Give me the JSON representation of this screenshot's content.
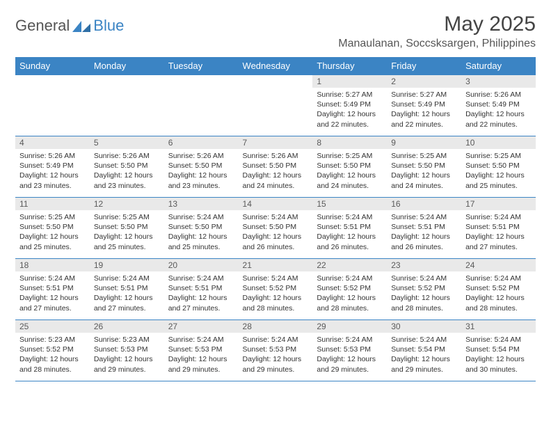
{
  "logo": {
    "text_a": "General",
    "text_b": "Blue",
    "shape_color": "#3b84c4"
  },
  "header": {
    "month_title": "May 2025",
    "location": "Manaulanan, Soccsksargen, Philippines"
  },
  "colors": {
    "header_bg": "#3b84c4",
    "header_text": "#ffffff",
    "daynum_bg": "#e9e9e9",
    "cell_border": "#3b84c4",
    "body_text": "#333333"
  },
  "typography": {
    "month_title_pt": 30,
    "location_pt": 16,
    "dow_pt": 13,
    "daynum_pt": 12,
    "info_pt": 10.5
  },
  "days_of_week": [
    "Sunday",
    "Monday",
    "Tuesday",
    "Wednesday",
    "Thursday",
    "Friday",
    "Saturday"
  ],
  "weeks": [
    [
      {
        "blank": true
      },
      {
        "blank": true
      },
      {
        "blank": true
      },
      {
        "blank": true
      },
      {
        "n": "1",
        "sunrise": "5:27 AM",
        "sunset": "5:49 PM",
        "daylight": "12 hours and 22 minutes."
      },
      {
        "n": "2",
        "sunrise": "5:27 AM",
        "sunset": "5:49 PM",
        "daylight": "12 hours and 22 minutes."
      },
      {
        "n": "3",
        "sunrise": "5:26 AM",
        "sunset": "5:49 PM",
        "daylight": "12 hours and 22 minutes."
      }
    ],
    [
      {
        "n": "4",
        "sunrise": "5:26 AM",
        "sunset": "5:49 PM",
        "daylight": "12 hours and 23 minutes."
      },
      {
        "n": "5",
        "sunrise": "5:26 AM",
        "sunset": "5:50 PM",
        "daylight": "12 hours and 23 minutes."
      },
      {
        "n": "6",
        "sunrise": "5:26 AM",
        "sunset": "5:50 PM",
        "daylight": "12 hours and 23 minutes."
      },
      {
        "n": "7",
        "sunrise": "5:26 AM",
        "sunset": "5:50 PM",
        "daylight": "12 hours and 24 minutes."
      },
      {
        "n": "8",
        "sunrise": "5:25 AM",
        "sunset": "5:50 PM",
        "daylight": "12 hours and 24 minutes."
      },
      {
        "n": "9",
        "sunrise": "5:25 AM",
        "sunset": "5:50 PM",
        "daylight": "12 hours and 24 minutes."
      },
      {
        "n": "10",
        "sunrise": "5:25 AM",
        "sunset": "5:50 PM",
        "daylight": "12 hours and 25 minutes."
      }
    ],
    [
      {
        "n": "11",
        "sunrise": "5:25 AM",
        "sunset": "5:50 PM",
        "daylight": "12 hours and 25 minutes."
      },
      {
        "n": "12",
        "sunrise": "5:25 AM",
        "sunset": "5:50 PM",
        "daylight": "12 hours and 25 minutes."
      },
      {
        "n": "13",
        "sunrise": "5:24 AM",
        "sunset": "5:50 PM",
        "daylight": "12 hours and 25 minutes."
      },
      {
        "n": "14",
        "sunrise": "5:24 AM",
        "sunset": "5:50 PM",
        "daylight": "12 hours and 26 minutes."
      },
      {
        "n": "15",
        "sunrise": "5:24 AM",
        "sunset": "5:51 PM",
        "daylight": "12 hours and 26 minutes."
      },
      {
        "n": "16",
        "sunrise": "5:24 AM",
        "sunset": "5:51 PM",
        "daylight": "12 hours and 26 minutes."
      },
      {
        "n": "17",
        "sunrise": "5:24 AM",
        "sunset": "5:51 PM",
        "daylight": "12 hours and 27 minutes."
      }
    ],
    [
      {
        "n": "18",
        "sunrise": "5:24 AM",
        "sunset": "5:51 PM",
        "daylight": "12 hours and 27 minutes."
      },
      {
        "n": "19",
        "sunrise": "5:24 AM",
        "sunset": "5:51 PM",
        "daylight": "12 hours and 27 minutes."
      },
      {
        "n": "20",
        "sunrise": "5:24 AM",
        "sunset": "5:51 PM",
        "daylight": "12 hours and 27 minutes."
      },
      {
        "n": "21",
        "sunrise": "5:24 AM",
        "sunset": "5:52 PM",
        "daylight": "12 hours and 28 minutes."
      },
      {
        "n": "22",
        "sunrise": "5:24 AM",
        "sunset": "5:52 PM",
        "daylight": "12 hours and 28 minutes."
      },
      {
        "n": "23",
        "sunrise": "5:24 AM",
        "sunset": "5:52 PM",
        "daylight": "12 hours and 28 minutes."
      },
      {
        "n": "24",
        "sunrise": "5:24 AM",
        "sunset": "5:52 PM",
        "daylight": "12 hours and 28 minutes."
      }
    ],
    [
      {
        "n": "25",
        "sunrise": "5:23 AM",
        "sunset": "5:52 PM",
        "daylight": "12 hours and 28 minutes."
      },
      {
        "n": "26",
        "sunrise": "5:23 AM",
        "sunset": "5:53 PM",
        "daylight": "12 hours and 29 minutes."
      },
      {
        "n": "27",
        "sunrise": "5:24 AM",
        "sunset": "5:53 PM",
        "daylight": "12 hours and 29 minutes."
      },
      {
        "n": "28",
        "sunrise": "5:24 AM",
        "sunset": "5:53 PM",
        "daylight": "12 hours and 29 minutes."
      },
      {
        "n": "29",
        "sunrise": "5:24 AM",
        "sunset": "5:53 PM",
        "daylight": "12 hours and 29 minutes."
      },
      {
        "n": "30",
        "sunrise": "5:24 AM",
        "sunset": "5:54 PM",
        "daylight": "12 hours and 29 minutes."
      },
      {
        "n": "31",
        "sunrise": "5:24 AM",
        "sunset": "5:54 PM",
        "daylight": "12 hours and 30 minutes."
      }
    ]
  ],
  "labels": {
    "sunrise": "Sunrise:",
    "sunset": "Sunset:",
    "daylight": "Daylight:"
  }
}
